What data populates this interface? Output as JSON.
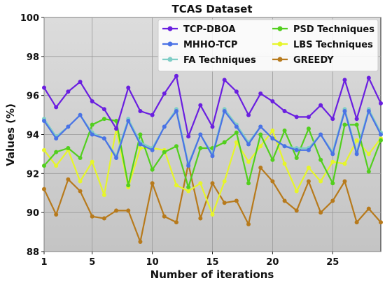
{
  "chart_data": {
    "type": "line",
    "title": "TCAS  Dataset",
    "xlabel": "Number of iterations",
    "ylabel": "Values (%)",
    "xlim": [
      1,
      29
    ],
    "ylim": [
      88,
      100
    ],
    "x_ticks": [
      1,
      5,
      10,
      15,
      20,
      25
    ],
    "y_ticks": [
      88,
      90,
      92,
      94,
      96,
      98,
      100
    ],
    "grid": true,
    "legend_position": "top-right",
    "x": [
      1,
      2,
      3,
      4,
      5,
      6,
      7,
      8,
      9,
      10,
      11,
      12,
      13,
      14,
      15,
      16,
      17,
      18,
      19,
      20,
      21,
      22,
      23,
      24,
      25,
      26,
      27,
      28,
      29
    ],
    "series": [
      {
        "name": "TCP-DBOA",
        "color": "#6a1fe0",
        "values": [
          96.4,
          95.4,
          96.2,
          96.7,
          95.7,
          95.3,
          94.3,
          96.4,
          95.2,
          95.0,
          96.1,
          97.0,
          93.9,
          95.5,
          94.4,
          96.8,
          96.2,
          95.0,
          96.1,
          95.7,
          95.2,
          94.9,
          94.9,
          95.5,
          94.8,
          96.8,
          94.8,
          96.9,
          95.6
        ]
      },
      {
        "name": "MHHO-TCP",
        "color": "#4a72e6",
        "values": [
          94.7,
          93.8,
          94.4,
          95.0,
          94.0,
          93.8,
          92.8,
          94.7,
          93.5,
          93.2,
          94.4,
          95.2,
          92.4,
          94.0,
          92.9,
          95.2,
          94.4,
          93.5,
          94.4,
          93.8,
          93.4,
          93.2,
          93.2,
          94.0,
          93.0,
          95.2,
          93.0,
          95.2,
          94.0
        ]
      },
      {
        "name": "FA Techniques",
        "color": "#7ecdc6",
        "values": [
          94.8,
          93.9,
          94.4,
          95.0,
          94.1,
          93.8,
          92.9,
          94.8,
          93.6,
          93.3,
          94.4,
          95.3,
          92.5,
          94.0,
          93.0,
          95.3,
          94.5,
          93.6,
          94.4,
          93.8,
          93.4,
          93.3,
          93.3,
          94.0,
          93.1,
          95.3,
          93.1,
          95.3,
          94.1
        ]
      },
      {
        "name": "PSD Techniques",
        "color": "#52cf1e",
        "values": [
          92.4,
          93.1,
          93.3,
          92.8,
          94.5,
          94.8,
          94.7,
          91.4,
          94.0,
          92.2,
          93.1,
          93.4,
          91.3,
          93.3,
          93.3,
          93.6,
          94.1,
          91.5,
          94.0,
          92.7,
          94.2,
          92.8,
          94.3,
          92.7,
          91.5,
          94.5,
          94.5,
          92.1,
          93.7
        ]
      },
      {
        "name": "LBS Techniques",
        "color": "#e6f52a",
        "values": [
          93.2,
          92.4,
          93.2,
          91.6,
          92.6,
          90.9,
          94.3,
          91.3,
          93.3,
          93.3,
          93.2,
          91.4,
          91.1,
          91.5,
          89.9,
          91.6,
          93.6,
          92.6,
          93.4,
          94.2,
          92.5,
          91.1,
          92.3,
          91.6,
          92.6,
          92.5,
          93.7,
          93.0,
          93.8
        ]
      },
      {
        "name": "GREEDY",
        "color": "#b77a1c",
        "values": [
          91.2,
          89.9,
          91.7,
          91.1,
          89.8,
          89.7,
          90.1,
          90.1,
          88.5,
          91.5,
          89.8,
          89.5,
          92.5,
          89.7,
          91.5,
          90.5,
          90.6,
          89.4,
          92.3,
          91.6,
          90.6,
          90.1,
          91.6,
          90.0,
          90.6,
          91.6,
          89.5,
          90.2,
          89.5
        ]
      }
    ]
  }
}
